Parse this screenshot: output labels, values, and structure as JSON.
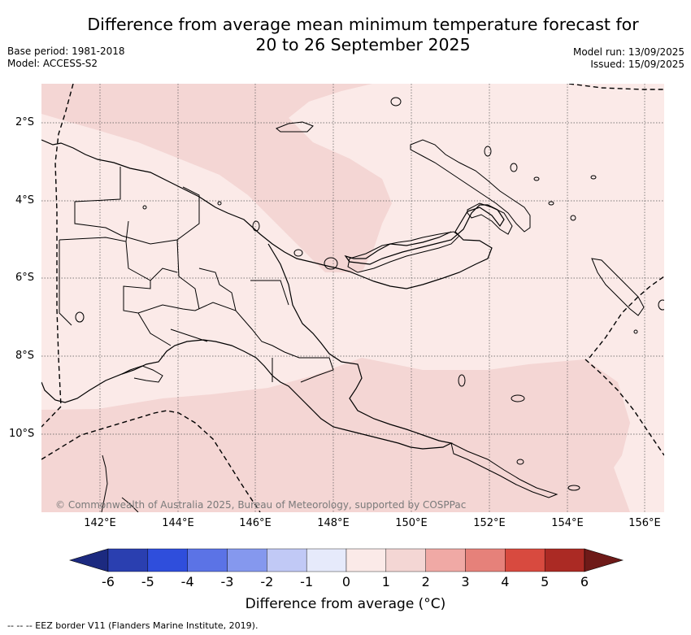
{
  "title": {
    "line1": "Difference from average mean minimum temperature forecast for",
    "line2": "20 to 26 September 2025"
  },
  "meta": {
    "base_period": "Base period: 1981-2018",
    "model": "Model: ACCESS-S2",
    "model_run": "Model run: 13/09/2025",
    "issued": "Issued: 15/09/2025"
  },
  "map": {
    "lat_labels": [
      "2°S",
      "4°S",
      "6°S",
      "8°S",
      "10°S"
    ],
    "lon_labels": [
      "142°E",
      "144°E",
      "146°E",
      "148°E",
      "150°E",
      "152°E",
      "154°E",
      "156°E"
    ],
    "copyright": "© Commonwealth of Australia 2025, Bureau of Meteorology, supported by COSPPac",
    "colors": {
      "light": "#fbeae8",
      "medium": "#f4d6d4",
      "land_outline": "#000000",
      "eez": "#000000",
      "grid": "#555555"
    }
  },
  "colorbar": {
    "ticks": [
      "-6",
      "-5",
      "-4",
      "-3",
      "-2",
      "-1",
      "0",
      "1",
      "2",
      "3",
      "4",
      "5",
      "6"
    ],
    "colors": [
      "#1c2a80",
      "#2a3fb0",
      "#2f4edc",
      "#5b73e6",
      "#8598ee",
      "#c1c9f6",
      "#e6eafb",
      "#fbeae8",
      "#f4d6d4",
      "#f0a9a5",
      "#e6817a",
      "#d84a3f",
      "#ab2a24",
      "#6e1a18"
    ],
    "label": "Difference from average (°C)"
  },
  "footnote": "-- -- -- EEZ border V11 (Flanders Marine Institute, 2019)."
}
